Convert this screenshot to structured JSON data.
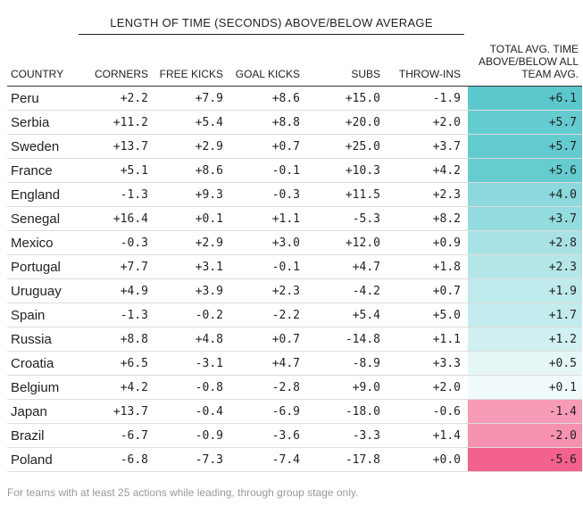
{
  "group_header": "LENGTH OF TIME (SECONDS) ABOVE/BELOW AVERAGE",
  "columns": {
    "country": "COUNTRY",
    "corners": "CORNERS",
    "free_kicks": "FREE KICKS",
    "goal_kicks": "GOAL KICKS",
    "subs": "SUBS",
    "throw_ins": "THROW-INS",
    "total": "TOTAL AVG. TIME ABOVE/BELOW ALL TEAM AVG."
  },
  "footnote": "For teams with at least 25 actions while leading, through group stage only.",
  "colors": {
    "positive_strong": "#5bc8cd",
    "negative_strong": "#f2628c"
  },
  "chart_data": {
    "type": "table",
    "rows": [
      {
        "country": "Peru",
        "corners": "+2.2",
        "free_kicks": "+7.9",
        "goal_kicks": "+8.6",
        "subs": "+15.0",
        "throw_ins": "-1.9",
        "total": "+6.1"
      },
      {
        "country": "Serbia",
        "corners": "+11.2",
        "free_kicks": "+5.4",
        "goal_kicks": "+8.8",
        "subs": "+20.0",
        "throw_ins": "+2.0",
        "total": "+5.7"
      },
      {
        "country": "Sweden",
        "corners": "+13.7",
        "free_kicks": "+2.9",
        "goal_kicks": "+0.7",
        "subs": "+25.0",
        "throw_ins": "+3.7",
        "total": "+5.7"
      },
      {
        "country": "France",
        "corners": "+5.1",
        "free_kicks": "+8.6",
        "goal_kicks": "-0.1",
        "subs": "+10.3",
        "throw_ins": "+4.2",
        "total": "+5.6"
      },
      {
        "country": "England",
        "corners": "-1.3",
        "free_kicks": "+9.3",
        "goal_kicks": "-0.3",
        "subs": "+11.5",
        "throw_ins": "+2.3",
        "total": "+4.0"
      },
      {
        "country": "Senegal",
        "corners": "+16.4",
        "free_kicks": "+0.1",
        "goal_kicks": "+1.1",
        "subs": "-5.3",
        "throw_ins": "+8.2",
        "total": "+3.7"
      },
      {
        "country": "Mexico",
        "corners": "-0.3",
        "free_kicks": "+2.9",
        "goal_kicks": "+3.0",
        "subs": "+12.0",
        "throw_ins": "+0.9",
        "total": "+2.8"
      },
      {
        "country": "Portugal",
        "corners": "+7.7",
        "free_kicks": "+3.1",
        "goal_kicks": "-0.1",
        "subs": "+4.7",
        "throw_ins": "+1.8",
        "total": "+2.3"
      },
      {
        "country": "Uruguay",
        "corners": "+4.9",
        "free_kicks": "+3.9",
        "goal_kicks": "+2.3",
        "subs": "-4.2",
        "throw_ins": "+0.7",
        "total": "+1.9"
      },
      {
        "country": "Spain",
        "corners": "-1.3",
        "free_kicks": "-0.2",
        "goal_kicks": "-2.2",
        "subs": "+5.4",
        "throw_ins": "+5.0",
        "total": "+1.7"
      },
      {
        "country": "Russia",
        "corners": "+8.8",
        "free_kicks": "+4.8",
        "goal_kicks": "+0.7",
        "subs": "-14.8",
        "throw_ins": "+1.1",
        "total": "+1.2"
      },
      {
        "country": "Croatia",
        "corners": "+6.5",
        "free_kicks": "-3.1",
        "goal_kicks": "+4.7",
        "subs": "-8.9",
        "throw_ins": "+3.3",
        "total": "+0.5"
      },
      {
        "country": "Belgium",
        "corners": "+4.2",
        "free_kicks": "-0.8",
        "goal_kicks": "-2.8",
        "subs": "+9.0",
        "throw_ins": "+2.0",
        "total": "+0.1"
      },
      {
        "country": "Japan",
        "corners": "+13.7",
        "free_kicks": "-0.4",
        "goal_kicks": "-6.9",
        "subs": "-18.0",
        "throw_ins": "-0.6",
        "total": "-1.4"
      },
      {
        "country": "Brazil",
        "corners": "-6.7",
        "free_kicks": "-0.9",
        "goal_kicks": "-3.6",
        "subs": "-3.3",
        "throw_ins": "+1.4",
        "total": "-2.0"
      },
      {
        "country": "Poland",
        "corners": "-6.8",
        "free_kicks": "-7.3",
        "goal_kicks": "-7.4",
        "subs": "-17.8",
        "throw_ins": "+0.0",
        "total": "-5.6"
      }
    ]
  }
}
